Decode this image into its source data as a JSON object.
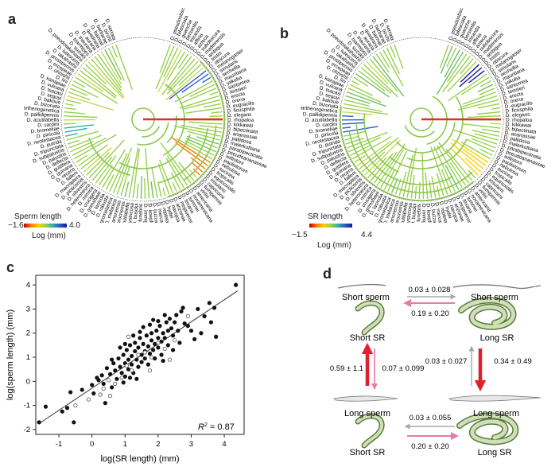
{
  "panel_a": {
    "label": "a",
    "legend_title": "Sperm length",
    "legend_min": "−1.6",
    "legend_max": "4.0",
    "legend_unit": "Log (mm)",
    "species_labels": [
      "D. pseudoobscura",
      "D. bifasciata",
      "D. guanche",
      "D. persimilis",
      "D. miranda",
      "D. affinis",
      "D. azteca",
      "D. subobscura",
      "D. madeirensis",
      "D. ambigua",
      "D. tristis",
      "D. obscura",
      "D. melanogaster",
      "D. simulans",
      "D. sechellia",
      "D. mauritiana",
      "D. yakuba",
      "D. santomea",
      "D. teissieri",
      "D. erecta",
      "D. orena",
      "D. eugracilis",
      "D. ficusphila",
      "D. elegans",
      "D. rhopaloa",
      "D. kikkawai",
      "D. bipectinata",
      "D. ananassae",
      "D. pallidosa",
      "D. malerkotliana",
      "D. parabipectinata",
      "D. pseudoananassae",
      "D. willistoni",
      "D. paulistorum",
      "D. nebulosa",
      "D. sucinea",
      "D. tropicalis",
      "D. equinoxialis",
      "D. insularis",
      "D. capricorni",
      "D. fumipennis",
      "D. virilis",
      "D. americana",
      "D. novamexicana",
      "D. lummei",
      "D. texana",
      "D. mojavensis",
      "D. arizonae",
      "D. navojoa",
      "D. hydei",
      "D. repleta",
      "D. mercatorum",
      "D. buzzatii",
      "D. koepferae",
      "D. immigrans",
      "D. funebris",
      "D. busckii",
      "D. hystricosa",
      "D. acutilabella",
      "D. procnemis",
      "D. lebanonensis",
      "D. melanica",
      "D. nigromelanica",
      "D. robusta",
      "D. lacicola",
      "D. grimshawi",
      "D. crucigera",
      "D. mimica",
      "D. heteroneura",
      "D. silvestris",
      "D. picticornis",
      "D. macroptera",
      "D. falleni",
      "D. recens",
      "D. quinaria",
      "D. guttifera",
      "D. deflecta",
      "D. palustris",
      "D. subpalustris",
      "D. tripunctata",
      "D. putrida",
      "D. neotestacea",
      "D. pinicola",
      "D. bromeliae",
      "D. cardini",
      "D. acutilabella",
      "D. pallidipennis",
      "D. parthenogenetica",
      "D. bizonata",
      "D. bakoue",
      "D. seguyi",
      "D. tsacasi",
      "D. vulcana",
      "D. kanapiae",
      "D. lini",
      "D. ohnishii",
      "D. ercepeae",
      "D. prostipennis",
      "D. takahashii",
      "D. lutescens",
      "D. pseudotakahashii",
      "D. suzukii",
      "D. biarmipes",
      "D. triauraria",
      "D. auraria",
      "D. quadraria",
      "D. baimaii",
      "D. barbarae",
      "D. birchii",
      "D. serrata",
      "D. jambulina",
      "D. fuyamai",
      "D. mayri"
    ]
  },
  "panel_b": {
    "label": "b",
    "legend_title": "SR length",
    "legend_min": "−1.5",
    "legend_max": "4.4",
    "legend_unit": "Log (mm)"
  },
  "panel_c": {
    "label": "c",
    "xlabel": "log(SR length) (mm)",
    "ylabel": "log(sperm length) (mm)",
    "r2": "R² = 0.87",
    "r2_prefix": "R",
    "r2_sup": "2",
    "r2_suffix": " = 0.87"
  },
  "chart_data": {
    "type": "scatter",
    "title": "",
    "xlabel": "log(SR length) (mm)",
    "ylabel": "log(sperm length) (mm)",
    "xlim": [
      -1.7,
      4.6
    ],
    "ylim": [
      -2.2,
      4.4
    ],
    "xticks": [
      -1,
      0,
      1,
      2,
      3,
      4
    ],
    "yticks": [
      -2,
      -1,
      0,
      1,
      2,
      3,
      4
    ],
    "fit_line": {
      "x": [
        -1.6,
        4.4
      ],
      "y": [
        -1.75,
        3.75
      ]
    },
    "annotation": "R² = 0.87",
    "series": [
      {
        "name": "filled",
        "marker": "filled-circle",
        "points": [
          [
            -1.6,
            -1.7
          ],
          [
            -1.4,
            -1.05
          ],
          [
            -0.9,
            -1.25
          ],
          [
            -0.75,
            -1.1
          ],
          [
            -0.65,
            -0.45
          ],
          [
            -0.55,
            -1.7
          ],
          [
            -0.3,
            -0.35
          ],
          [
            0.0,
            -0.15
          ],
          [
            0.15,
            0.15
          ],
          [
            0.3,
            0.25
          ],
          [
            0.35,
            -0.1
          ],
          [
            0.45,
            0.55
          ],
          [
            0.55,
            0.3
          ],
          [
            0.6,
            -0.25
          ],
          [
            0.65,
            0.75
          ],
          [
            0.7,
            0.45
          ],
          [
            0.75,
            0.1
          ],
          [
            0.8,
            0.95
          ],
          [
            0.85,
            0.6
          ],
          [
            0.9,
            0.35
          ],
          [
            0.95,
            1.1
          ],
          [
            1.0,
            0.75
          ],
          [
            1.0,
            0.2
          ],
          [
            1.05,
            1.3
          ],
          [
            1.1,
            0.9
          ],
          [
            1.1,
            0.5
          ],
          [
            1.15,
            1.5
          ],
          [
            1.2,
            1.05
          ],
          [
            1.2,
            0.7
          ],
          [
            1.25,
            0.35
          ],
          [
            1.3,
            1.25
          ],
          [
            1.3,
            1.6
          ],
          [
            1.35,
            0.9
          ],
          [
            1.4,
            1.4
          ],
          [
            1.4,
            0.6
          ],
          [
            1.45,
            1.8
          ],
          [
            1.5,
            1.1
          ],
          [
            1.5,
            0.8
          ],
          [
            1.55,
            1.55
          ],
          [
            1.6,
            1.25
          ],
          [
            1.6,
            0.95
          ],
          [
            1.65,
            1.9
          ],
          [
            1.7,
            1.45
          ],
          [
            1.7,
            0.7
          ],
          [
            1.75,
            1.15
          ],
          [
            1.8,
            1.7
          ],
          [
            1.8,
            2.0
          ],
          [
            1.85,
            1.3
          ],
          [
            1.9,
            1.55
          ],
          [
            1.9,
            0.95
          ],
          [
            1.95,
            2.1
          ],
          [
            2.0,
            1.8
          ],
          [
            2.0,
            1.4
          ],
          [
            2.05,
            2.3
          ],
          [
            2.1,
            1.65
          ],
          [
            2.1,
            1.1
          ],
          [
            2.15,
            2.0
          ],
          [
            2.2,
            1.8
          ],
          [
            2.25,
            2.45
          ],
          [
            2.3,
            2.1
          ],
          [
            2.3,
            1.5
          ],
          [
            2.35,
            2.6
          ],
          [
            2.4,
            2.2
          ],
          [
            2.45,
            1.9
          ],
          [
            2.5,
            2.45
          ],
          [
            2.55,
            2.75
          ],
          [
            2.6,
            2.1
          ],
          [
            2.7,
            2.9
          ],
          [
            2.8,
            2.4
          ],
          [
            2.9,
            2.3
          ],
          [
            3.0,
            2.1
          ],
          [
            3.1,
            1.75
          ],
          [
            3.2,
            3.0
          ],
          [
            3.3,
            2.0
          ],
          [
            3.4,
            2.7
          ],
          [
            3.55,
            3.25
          ],
          [
            3.6,
            2.45
          ],
          [
            3.7,
            3.05
          ],
          [
            3.75,
            1.85
          ],
          [
            4.35,
            4.0
          ],
          [
            0.05,
            -0.5
          ],
          [
            0.2,
            0.05
          ],
          [
            0.4,
            -0.9
          ],
          [
            1.0,
            1.55
          ],
          [
            1.15,
            0.15
          ],
          [
            1.55,
            2.25
          ],
          [
            1.75,
            2.35
          ],
          [
            2.0,
            2.5
          ],
          [
            2.2,
            2.75
          ],
          [
            0.85,
            1.4
          ],
          [
            0.6,
            0.9
          ],
          [
            1.25,
            1.9
          ],
          [
            2.45,
            1.3
          ],
          [
            2.65,
            1.6
          ],
          [
            2.75,
            3.05
          ],
          [
            1.35,
            0.1
          ],
          [
            0.95,
            -0.05
          ],
          [
            1.85,
            2.55
          ],
          [
            2.15,
            0.85
          ],
          [
            1.45,
            2.05
          ]
        ]
      },
      {
        "name": "open",
        "marker": "open-circle",
        "points": [
          [
            -0.5,
            -1.0
          ],
          [
            -0.1,
            -0.75
          ],
          [
            0.25,
            -0.55
          ],
          [
            0.35,
            -0.3
          ],
          [
            0.5,
            0.05
          ],
          [
            0.7,
            -0.1
          ],
          [
            0.9,
            0.15
          ],
          [
            1.05,
            0.65
          ],
          [
            1.2,
            0.45
          ],
          [
            1.4,
            1.1
          ],
          [
            1.6,
            1.2
          ],
          [
            1.8,
            1.0
          ],
          [
            2.0,
            1.6
          ],
          [
            2.2,
            1.35
          ],
          [
            2.5,
            1.7
          ],
          [
            2.9,
            2.7
          ],
          [
            1.1,
            1.85
          ],
          [
            0.55,
            -0.6
          ],
          [
            1.75,
            0.45
          ],
          [
            2.35,
            0.9
          ]
        ]
      }
    ]
  },
  "panel_d": {
    "label": "d",
    "states": {
      "top_left": {
        "sperm": "Short sperm",
        "sr": "Short SR"
      },
      "top_right": {
        "sperm": "Short sperm",
        "sr": "Long SR"
      },
      "bottom_left": {
        "sperm": "Long sperm",
        "sr": "Short SR"
      },
      "bottom_right": {
        "sperm": "Long sperm",
        "sr": "Long SR"
      }
    },
    "rates": {
      "top_right_arrow": "0.03 ± 0.028",
      "top_left_arrow": "0.19 ± 0.20",
      "left_up": "0.59 ± 1.1",
      "left_down": "0.07 ± 0.099",
      "right_up": "0.03 ± 0.027",
      "right_down": "0.34 ± 0.49",
      "bottom_left_arrow": "0.03 ± 0.055",
      "bottom_right_arrow": "0.20 ± 0.20"
    },
    "colors": {
      "strong": "#e0202a",
      "pink": "#e87aa8",
      "grey": "#a8a8a8"
    }
  }
}
